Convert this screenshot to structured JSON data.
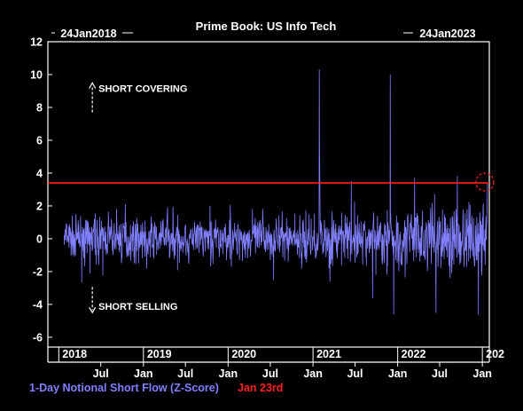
{
  "chart_data": {
    "type": "line",
    "title": "Prime Book: US Info Tech",
    "start_date": "24Jan2018",
    "end_date": "24Jan2023",
    "ylim": [
      -6.6,
      12
    ],
    "yticks": [
      12,
      10,
      8,
      6,
      4,
      2,
      0,
      -2,
      -4,
      -6
    ],
    "xlim": [
      "2017-11-15",
      "2023-01-31"
    ],
    "x_ticks_year": [
      {
        "label": "2018",
        "date": "2018-01-01"
      },
      {
        "label": "2019",
        "date": "2019-01-01"
      },
      {
        "label": "2020",
        "date": "2020-01-01"
      },
      {
        "label": "2021",
        "date": "2021-01-01"
      },
      {
        "label": "2022",
        "date": "2022-01-01"
      },
      {
        "label": "202",
        "date": "2023-01-01"
      }
    ],
    "x_ticks_month": [
      {
        "label": "Jul",
        "date": "2018-07-01"
      },
      {
        "label": "Jan",
        "date": "2019-01-01"
      },
      {
        "label": "Jul",
        "date": "2019-07-01"
      },
      {
        "label": "Jan",
        "date": "2020-01-01"
      },
      {
        "label": "Jul",
        "date": "2020-07-01"
      },
      {
        "label": "Jan",
        "date": "2021-01-01"
      },
      {
        "label": "Jul",
        "date": "2021-07-01"
      },
      {
        "label": "Jan",
        "date": "2022-01-01"
      },
      {
        "label": "Jul",
        "date": "2022-07-01"
      },
      {
        "label": "Jan",
        "date": "2023-01-01"
      }
    ],
    "series": [
      {
        "name": "1-Day Notional Short Flow (Z-Score)",
        "color": "#8080ff",
        "x": [
          "2018-01-24",
          "2018-04-15",
          "2018-07-01",
          "2018-10-15",
          "2019-01-15",
          "2019-04-15",
          "2019-07-15",
          "2019-10-15",
          "2020-01-15",
          "2020-04-15",
          "2020-07-15",
          "2020-10-15",
          "2020-12-20",
          "2021-01-28",
          "2021-01-29",
          "2021-03-15",
          "2021-06-15",
          "2021-09-15",
          "2021-11-30",
          "2021-12-15",
          "2022-03-15",
          "2022-06-15",
          "2022-09-15",
          "2022-12-15",
          "2023-01-23"
        ],
        "y": [
          0.2,
          -1.5,
          -2.8,
          2.1,
          -1.8,
          1.9,
          -1.5,
          2.0,
          -1.7,
          1.8,
          -2.5,
          1.5,
          -2.6,
          10.3,
          5.8,
          -2.6,
          3.5,
          -3.6,
          10.0,
          -4.6,
          3.7,
          -4.5,
          3.8,
          -4.6,
          3.4
        ]
      }
    ],
    "annotations": [
      {
        "text": "SHORT COVERING",
        "x": "2018-06-10",
        "y": 9.0,
        "arrow": "up"
      },
      {
        "text": "SHORT SELLING",
        "x": "2018-06-10",
        "y": -3.8,
        "arrow": "down"
      }
    ],
    "reference_line": {
      "label": "Jan 23rd",
      "value": 3.4,
      "color": "#ff2020"
    }
  }
}
